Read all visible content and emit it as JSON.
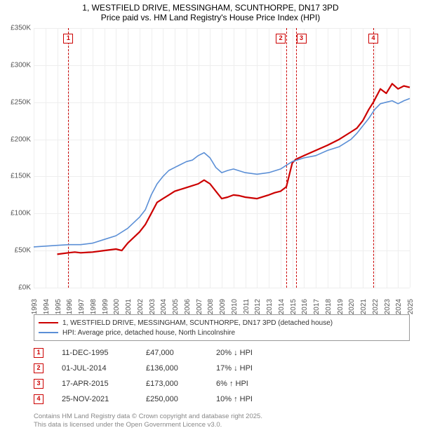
{
  "title_line1": "1, WESTFIELD DRIVE, MESSINGHAM, SCUNTHORPE, DN17 3PD",
  "title_line2": "Price paid vs. HM Land Registry's House Price Index (HPI)",
  "chart": {
    "type": "line",
    "background_color": "#ffffff",
    "grid_color": "#eeeeee",
    "ylim": [
      0,
      350000
    ],
    "ytick_step": 50000,
    "yticks": [
      "£0K",
      "£50K",
      "£100K",
      "£150K",
      "£200K",
      "£250K",
      "£300K",
      "£350K"
    ],
    "xlim": [
      1993,
      2025
    ],
    "xticks": [
      1993,
      1994,
      1995,
      1996,
      1997,
      1998,
      1999,
      2000,
      2001,
      2002,
      2003,
      2004,
      2005,
      2006,
      2007,
      2008,
      2009,
      2010,
      2011,
      2012,
      2013,
      2014,
      2015,
      2016,
      2017,
      2018,
      2019,
      2020,
      2021,
      2022,
      2023,
      2024,
      2025
    ],
    "series": [
      {
        "name": "price_paid",
        "label": "1, WESTFIELD DRIVE, MESSINGHAM, SCUNTHORPE, DN17 3PD (detached house)",
        "color": "#cc0000",
        "line_width": 2.2,
        "points": [
          [
            1995.0,
            45000
          ],
          [
            1995.95,
            47000
          ],
          [
            1996.5,
            48000
          ],
          [
            1997.0,
            47000
          ],
          [
            1998.0,
            48000
          ],
          [
            1999.0,
            50000
          ],
          [
            2000.0,
            52000
          ],
          [
            2000.5,
            50000
          ],
          [
            2001.0,
            60000
          ],
          [
            2002.0,
            75000
          ],
          [
            2002.5,
            85000
          ],
          [
            2003.0,
            100000
          ],
          [
            2003.5,
            115000
          ],
          [
            2004.0,
            120000
          ],
          [
            2004.5,
            125000
          ],
          [
            2005.0,
            130000
          ],
          [
            2006.0,
            135000
          ],
          [
            2007.0,
            140000
          ],
          [
            2007.5,
            145000
          ],
          [
            2008.0,
            140000
          ],
          [
            2008.5,
            130000
          ],
          [
            2009.0,
            120000
          ],
          [
            2009.5,
            122000
          ],
          [
            2010.0,
            125000
          ],
          [
            2010.5,
            124000
          ],
          [
            2011.0,
            122000
          ],
          [
            2012.0,
            120000
          ],
          [
            2013.0,
            125000
          ],
          [
            2013.5,
            128000
          ],
          [
            2014.0,
            130000
          ],
          [
            2014.5,
            136000
          ],
          [
            2015.0,
            168000
          ],
          [
            2015.3,
            173000
          ],
          [
            2016.0,
            178000
          ],
          [
            2017.0,
            185000
          ],
          [
            2018.0,
            192000
          ],
          [
            2019.0,
            200000
          ],
          [
            2020.0,
            210000
          ],
          [
            2020.5,
            215000
          ],
          [
            2021.0,
            225000
          ],
          [
            2021.5,
            240000
          ],
          [
            2021.9,
            250000
          ],
          [
            2022.5,
            268000
          ],
          [
            2023.0,
            262000
          ],
          [
            2023.5,
            275000
          ],
          [
            2024.0,
            268000
          ],
          [
            2024.5,
            272000
          ],
          [
            2025.0,
            270000
          ]
        ]
      },
      {
        "name": "hpi",
        "label": "HPI: Average price, detached house, North Lincolnshire",
        "color": "#5b8fd6",
        "line_width": 1.6,
        "points": [
          [
            1993.0,
            55000
          ],
          [
            1994.0,
            56000
          ],
          [
            1995.0,
            57000
          ],
          [
            1996.0,
            58000
          ],
          [
            1997.0,
            58000
          ],
          [
            1998.0,
            60000
          ],
          [
            1999.0,
            65000
          ],
          [
            2000.0,
            70000
          ],
          [
            2001.0,
            80000
          ],
          [
            2002.0,
            95000
          ],
          [
            2002.5,
            105000
          ],
          [
            2003.0,
            125000
          ],
          [
            2003.5,
            140000
          ],
          [
            2004.0,
            150000
          ],
          [
            2004.5,
            158000
          ],
          [
            2005.0,
            162000
          ],
          [
            2006.0,
            170000
          ],
          [
            2006.5,
            172000
          ],
          [
            2007.0,
            178000
          ],
          [
            2007.5,
            182000
          ],
          [
            2008.0,
            175000
          ],
          [
            2008.5,
            162000
          ],
          [
            2009.0,
            155000
          ],
          [
            2009.5,
            158000
          ],
          [
            2010.0,
            160000
          ],
          [
            2011.0,
            155000
          ],
          [
            2012.0,
            153000
          ],
          [
            2013.0,
            155000
          ],
          [
            2014.0,
            160000
          ],
          [
            2014.5,
            165000
          ],
          [
            2015.0,
            170000
          ],
          [
            2016.0,
            175000
          ],
          [
            2017.0,
            178000
          ],
          [
            2018.0,
            185000
          ],
          [
            2019.0,
            190000
          ],
          [
            2020.0,
            200000
          ],
          [
            2020.5,
            208000
          ],
          [
            2021.0,
            218000
          ],
          [
            2021.5,
            228000
          ],
          [
            2022.0,
            240000
          ],
          [
            2022.5,
            248000
          ],
          [
            2023.0,
            250000
          ],
          [
            2023.5,
            252000
          ],
          [
            2024.0,
            248000
          ],
          [
            2024.5,
            252000
          ],
          [
            2025.0,
            255000
          ]
        ]
      }
    ],
    "events": [
      {
        "num": "1",
        "year": 1995.95,
        "date": "11-DEC-1995",
        "price": "£47,000",
        "pct": "20%",
        "dir": "down",
        "rel": "HPI"
      },
      {
        "num": "2",
        "year": 2014.5,
        "date": "01-JUL-2014",
        "price": "£136,000",
        "pct": "17%",
        "dir": "down",
        "rel": "HPI"
      },
      {
        "num": "3",
        "year": 2015.3,
        "date": "17-APR-2015",
        "price": "£173,000",
        "pct": "6%",
        "dir": "up",
        "rel": "HPI"
      },
      {
        "num": "4",
        "year": 2021.9,
        "date": "25-NOV-2021",
        "price": "£250,000",
        "pct": "10%",
        "dir": "up",
        "rel": "HPI"
      }
    ],
    "event_marker_border": "#cc0000",
    "event_line_color": "#cc0000"
  },
  "legend_items": [
    {
      "color": "#cc0000",
      "width": 2.5,
      "label": "1, WESTFIELD DRIVE, MESSINGHAM, SCUNTHORPE, DN17 3PD (detached house)"
    },
    {
      "color": "#5b8fd6",
      "width": 1.8,
      "label": "HPI: Average price, detached house, North Lincolnshire"
    }
  ],
  "footer_line1": "Contains HM Land Registry data © Crown copyright and database right 2025.",
  "footer_line2": "This data is licensed under the Open Government Licence v3.0."
}
